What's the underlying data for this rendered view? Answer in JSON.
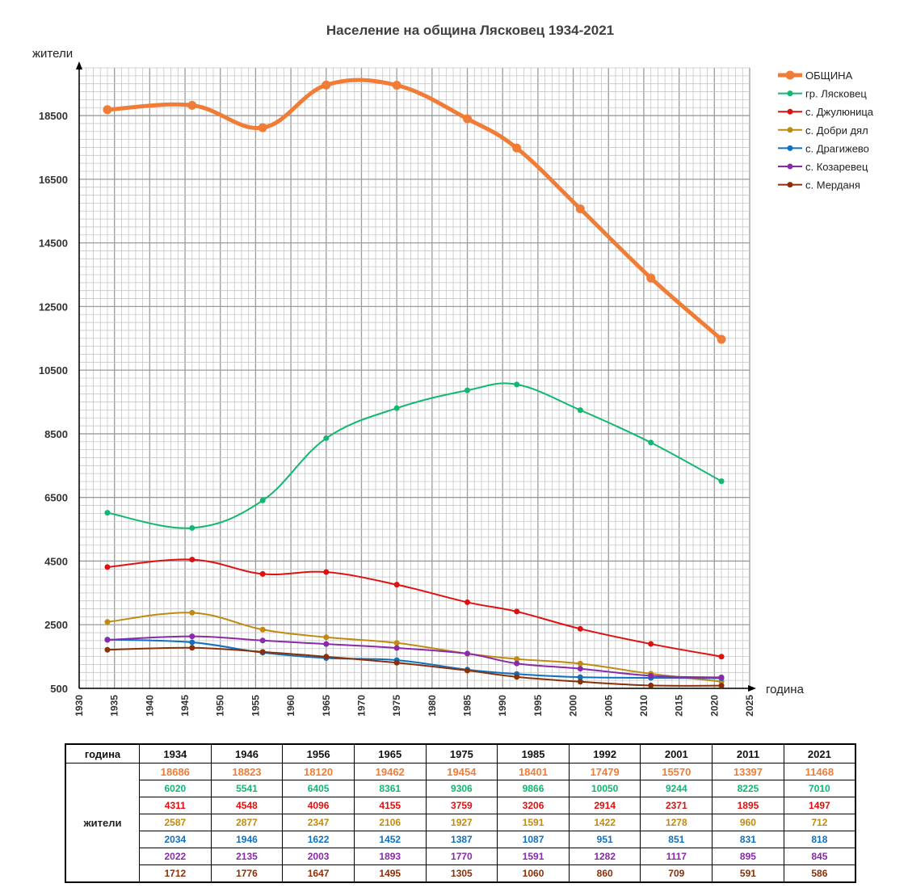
{
  "chart_data": {
    "type": "line",
    "title": "Население на община Лясковец 1934-2021",
    "ylabel": "жители",
    "xlabel": "година",
    "x": [
      1934,
      1946,
      1956,
      1965,
      1975,
      1985,
      1992,
      2001,
      2011,
      2021
    ],
    "xlim": [
      1930,
      2025
    ],
    "ylim": [
      500,
      20000
    ],
    "x_ticks": [
      1930,
      1935,
      1940,
      1945,
      1950,
      1955,
      1960,
      1965,
      1970,
      1975,
      1980,
      1985,
      1990,
      1995,
      2000,
      2005,
      2010,
      2015,
      2020,
      2025
    ],
    "y_ticks": [
      500,
      2500,
      4500,
      6500,
      8500,
      10500,
      12500,
      14500,
      16500,
      18500
    ],
    "grid": true,
    "legend_position": "top-right",
    "series": [
      {
        "name": "ОБЩИНА",
        "color": "#f07c36",
        "values": [
          18686,
          18823,
          18120,
          19462,
          19454,
          18401,
          17479,
          15570,
          13397,
          11468
        ]
      },
      {
        "name": "гр. Лясковец",
        "color": "#10b870",
        "values": [
          6020,
          5541,
          6405,
          8361,
          9306,
          9866,
          10050,
          9244,
          8225,
          7010
        ]
      },
      {
        "name": "с. Джулюница",
        "color": "#e01010",
        "values": [
          4311,
          4548,
          4096,
          4155,
          3759,
          3206,
          2914,
          2371,
          1895,
          1497
        ]
      },
      {
        "name": "с. Добри дял",
        "color": "#c08a10",
        "values": [
          2587,
          2877,
          2347,
          2106,
          1927,
          1591,
          1422,
          1278,
          960,
          712
        ]
      },
      {
        "name": "с. Драгижево",
        "color": "#1070c0",
        "values": [
          2034,
          1946,
          1622,
          1452,
          1387,
          1087,
          951,
          851,
          831,
          818
        ]
      },
      {
        "name": "с. Козаревец",
        "color": "#8a2aa8",
        "values": [
          2022,
          2135,
          2003,
          1893,
          1770,
          1591,
          1282,
          1117,
          895,
          845
        ]
      },
      {
        "name": "с. Мерданя",
        "color": "#8a3008",
        "values": [
          1712,
          1776,
          1647,
          1495,
          1305,
          1060,
          860,
          709,
          591,
          586
        ]
      }
    ]
  },
  "table": {
    "year_header": "година",
    "row_header": "жители"
  }
}
